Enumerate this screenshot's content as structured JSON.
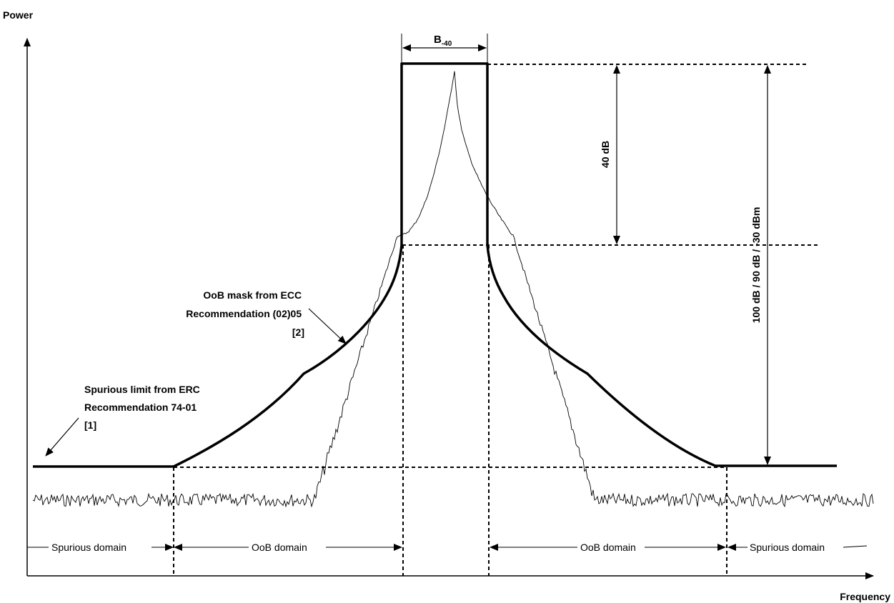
{
  "axes": {
    "y_label": "Power",
    "x_label": "Frequency"
  },
  "bandwidth": {
    "label_main": "B",
    "label_sub": "-40"
  },
  "measurements": {
    "inner": "40 dB",
    "outer": "100 dB / 90 dB / -30 dBm"
  },
  "annotations": {
    "oob_mask": [
      "OoB mask from ECC",
      "Recommendation (02)05",
      "[2]"
    ],
    "spurious_limit": [
      "Spurious limit from ERC",
      "Recommendation 74-01",
      "[1]"
    ]
  },
  "domains": {
    "left_spurious": "Spurious domain",
    "left_oob": "OoB domain",
    "right_oob": "OoB domain",
    "right_spurious": "Spurious domain"
  },
  "colors": {
    "ink": "#000000",
    "background": "#ffffff"
  }
}
